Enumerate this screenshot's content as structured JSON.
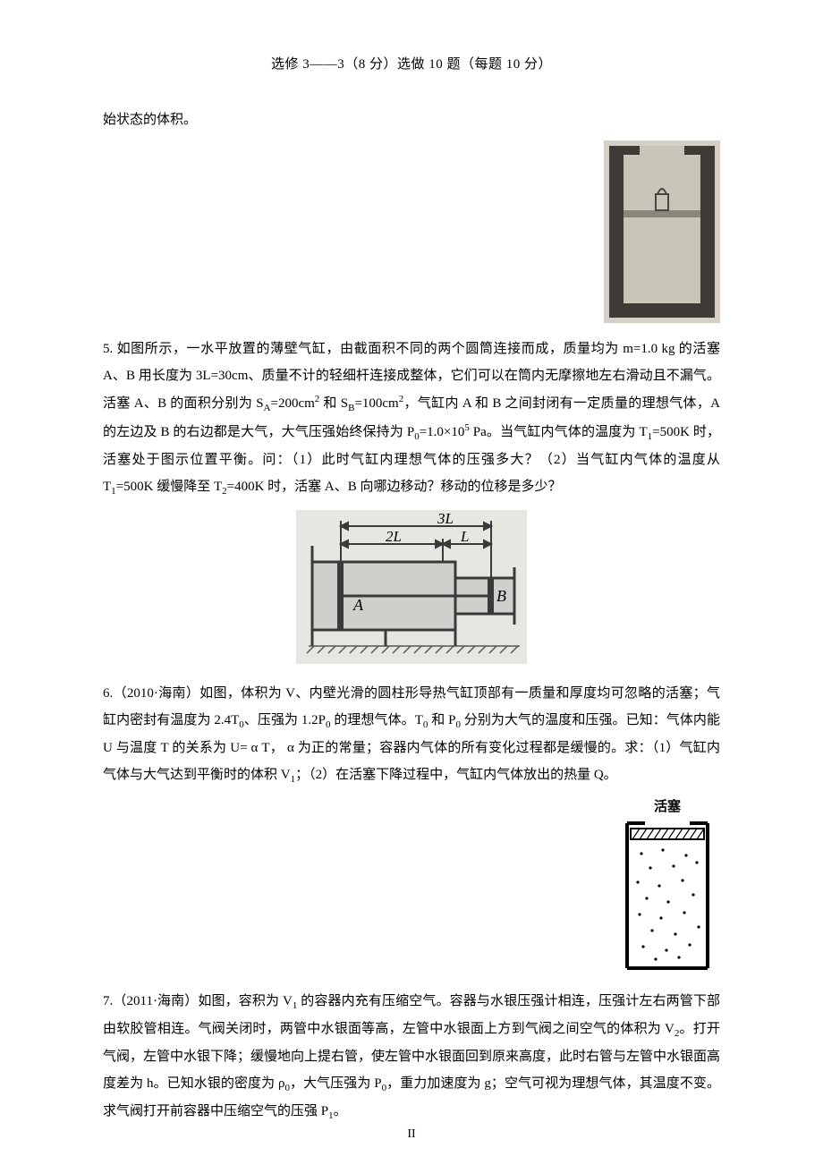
{
  "header": {
    "title": "选修 3——3（8 分）选做 10 题（每题 10 分）"
  },
  "frag_top": {
    "text": "始状态的体积。"
  },
  "q5": {
    "text": "5. 如图所示，一水平放置的薄壁气缸，由截面积不同的两个圆筒连接而成，质量均为 m=1.0 kg 的活塞 A、B 用长度为 3L=30cm、质量不计的轻细杆连接成整体，它们可以在筒内无摩擦地左右滑动且不漏气。活塞 A、B 的面积分别为 S_A=200cm^2 和 S_B=100cm^2，气缸内 A 和 B 之间封闭有一定质量的理想气体，A 的左边及 B 的右边都是大气，大气压强始终保持为 P_0=1.0×10^5 Pa。当气缸内气体的温度为 T_1=500K 时，活塞处于图示位置平衡。问：（1）此时气缸内理想气体的压强多大？（2）当气缸内气体的温度从 T_1=500K 缓慢降至 T_2=400K 时，活塞 A、B 向哪边移动？移动的位移是多少？"
  },
  "q6": {
    "text": "6.（2010·海南）如图，体积为 V、内壁光滑的圆柱形导热气缸顶部有一质量和厚度均可忽略的活塞；气缸内密封有温度为 2.4T_0、压强为 1.2P_0 的理想气体。T_0 和 P_0 分别为大气的温度和压强。已知：气体内能 U 与温度 T 的关系为 U= α T， α 为正的常量；容器内气体的所有变化过程都是缓慢的。求：（1）气缸内气体与大气达到平衡时的体积 V_1；（2）在活塞下降过程中，气缸内气体放出的热量 Q。"
  },
  "q7": {
    "text": "7.（2011·海南）如图，容积为 V_1 的容器内充有压缩空气。容器与水银压强计相连，压强计左右两管下部由软胶管相连。气阀关闭时，两管中水银面等高，左管中水银面上方到气阀之间空气的体积为 V_2。打开气阀，左管中水银下降；缓慢地向上提右管，使左管中水银面回到原来高度，此时右管与左管中水银面高度差为 h。已知水银的密度为 ρ_0，大气压强为 P_0，重力加速度为 g；空气可视为理想气体，其温度不变。求气阀打开前容器中压缩空气的压强 P_1。"
  },
  "fig5": {
    "label_3L": "3L",
    "label_2L": "2L",
    "label_L": "L",
    "label_A": "A",
    "label_B": "B",
    "outline_color": "#3a3a3a",
    "fill_color": "#cfd0cc",
    "hatch_color": "#555555",
    "bg_color": "#e7e7e1"
  },
  "fig4": {
    "wall_color": "#3f3a36",
    "inner_color": "#c9c4b8",
    "piston_color": "#8d867c",
    "bg_color": "#d6d1c7"
  },
  "fig6": {
    "label": "活塞",
    "wall_color": "#000000",
    "dot_color": "#000000",
    "piston_hatch": "#000000",
    "bg_color": "#ffffff"
  },
  "page_number": "II"
}
